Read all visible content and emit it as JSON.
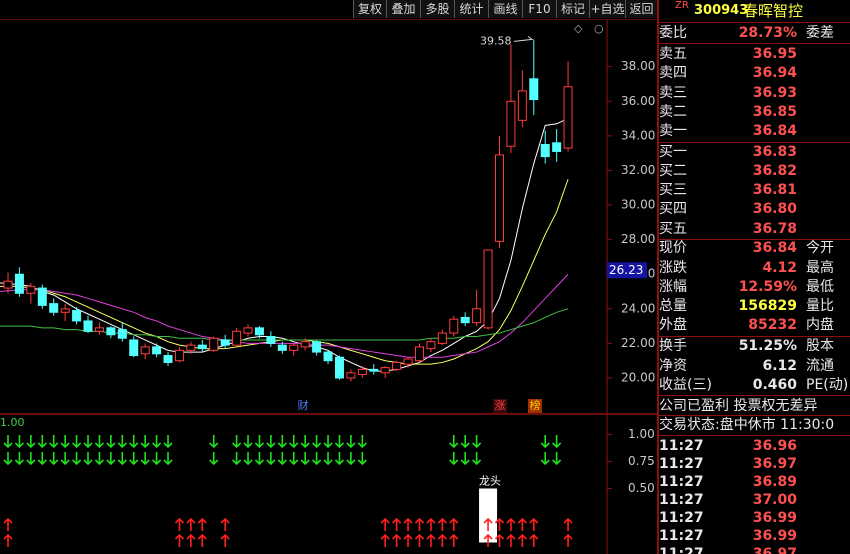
{
  "toolbar": [
    "复权",
    "叠加",
    "多股",
    "统计",
    "画线",
    "F10",
    "标记",
    "+自选",
    "返回"
  ],
  "stock": {
    "tag": "ZR",
    "code": "300943",
    "name": "春晖智控"
  },
  "order_book": {
    "ratio_label": "委比",
    "ratio": "28.73%",
    "diff_label": "委差",
    "asks": [
      {
        "label": "卖五",
        "price": "36.95"
      },
      {
        "label": "卖四",
        "price": "36.94"
      },
      {
        "label": "卖三",
        "price": "36.93"
      },
      {
        "label": "卖二",
        "price": "36.85"
      },
      {
        "label": "卖一",
        "price": "36.84"
      }
    ],
    "bids": [
      {
        "label": "买一",
        "price": "36.83"
      },
      {
        "label": "买二",
        "price": "36.82"
      },
      {
        "label": "买三",
        "price": "36.81"
      },
      {
        "label": "买四",
        "price": "36.80"
      },
      {
        "label": "买五",
        "price": "36.78"
      }
    ]
  },
  "quote": [
    {
      "label": "现价",
      "value": "36.84",
      "label2": "今开",
      "color": "#ff5050"
    },
    {
      "label": "涨跌",
      "value": "4.12",
      "label2": "最高",
      "color": "#ff5050"
    },
    {
      "label": "涨幅",
      "value": "12.59%",
      "label2": "最低",
      "color": "#ff5050"
    },
    {
      "label": "总量",
      "value": "156829",
      "label2": "量比",
      "color": "#ffff40"
    },
    {
      "label": "外盘",
      "value": "85232",
      "label2": "内盘",
      "color": "#ff5050"
    },
    {
      "label": "换手",
      "value": "51.25%",
      "label2": "股本",
      "color": "#e8e8e8"
    },
    {
      "label": "净资",
      "value": "6.12",
      "label2": "流通",
      "color": "#e8e8e8"
    },
    {
      "label": "收益(三)",
      "value": "0.460",
      "label2": "PE(动)",
      "color": "#e8e8e8"
    }
  ],
  "note": "公司已盈利 投票权无差异",
  "status": "交易状态:盘中休市 11:30:0",
  "ticks": [
    {
      "time": "11:27",
      "price": "36.96"
    },
    {
      "time": "11:27",
      "price": "36.97"
    },
    {
      "time": "11:27",
      "price": "36.89"
    },
    {
      "time": "11:27",
      "price": "37.00"
    },
    {
      "time": "11:27",
      "price": "36.99"
    },
    {
      "time": "11:27",
      "price": "36.99"
    },
    {
      "time": "11:27",
      "price": "36.97"
    }
  ],
  "chart": {
    "ylim": [
      18,
      40.7
    ],
    "yticks": [
      {
        "value": 20,
        "label": "20.00"
      },
      {
        "value": 22,
        "label": "22.00"
      },
      {
        "value": 24,
        "label": "24.00"
      },
      {
        "value": 26,
        "label": "26.00"
      },
      {
        "value": 28,
        "label": "28.00"
      },
      {
        "value": 30,
        "label": "30.00"
      },
      {
        "value": 32,
        "label": "32.00"
      },
      {
        "value": 34,
        "label": "34.00"
      },
      {
        "value": 36,
        "label": "36.00"
      },
      {
        "value": 38,
        "label": "38.00"
      }
    ],
    "price_tag": 26.23,
    "candles": [
      [
        25.2,
        26.1,
        24.9,
        25.6
      ],
      [
        26.0,
        26.4,
        24.7,
        24.9
      ],
      [
        24.9,
        25.5,
        24.3,
        25.3
      ],
      [
        25.2,
        25.4,
        24.0,
        24.2
      ],
      [
        24.3,
        24.6,
        23.6,
        23.8
      ],
      [
        23.8,
        24.3,
        23.3,
        24.0
      ],
      [
        23.9,
        24.1,
        23.1,
        23.3
      ],
      [
        23.3,
        23.6,
        22.6,
        22.7
      ],
      [
        22.7,
        23.2,
        22.5,
        22.9
      ],
      [
        22.9,
        23.0,
        22.3,
        22.5
      ],
      [
        22.8,
        23.2,
        22.1,
        22.3
      ],
      [
        22.2,
        22.4,
        21.2,
        21.3
      ],
      [
        21.4,
        22.0,
        21.1,
        21.8
      ],
      [
        21.8,
        22.0,
        21.2,
        21.4
      ],
      [
        21.3,
        21.5,
        20.7,
        20.9
      ],
      [
        21.0,
        21.8,
        20.9,
        21.6
      ],
      [
        21.6,
        22.1,
        21.4,
        21.9
      ],
      [
        21.9,
        22.2,
        21.5,
        21.7
      ],
      [
        21.6,
        22.4,
        21.5,
        22.3
      ],
      [
        22.2,
        22.5,
        21.7,
        21.9
      ],
      [
        21.9,
        22.9,
        21.8,
        22.7
      ],
      [
        22.6,
        23.1,
        22.4,
        22.9
      ],
      [
        22.9,
        23.0,
        22.3,
        22.5
      ],
      [
        22.4,
        22.7,
        21.8,
        22.0
      ],
      [
        21.9,
        22.1,
        21.4,
        21.6
      ],
      [
        21.6,
        22.0,
        21.3,
        21.9
      ],
      [
        21.8,
        22.3,
        21.6,
        22.1
      ],
      [
        22.1,
        22.2,
        21.3,
        21.5
      ],
      [
        21.5,
        21.6,
        20.8,
        21.0
      ],
      [
        21.2,
        21.3,
        19.9,
        20.0
      ],
      [
        20.0,
        20.5,
        19.8,
        20.3
      ],
      [
        20.2,
        20.7,
        20.0,
        20.5
      ],
      [
        20.5,
        20.8,
        20.2,
        20.4
      ],
      [
        20.3,
        20.7,
        20.0,
        20.6
      ],
      [
        20.5,
        21.0,
        20.4,
        20.9
      ],
      [
        20.8,
        21.2,
        20.6,
        21.1
      ],
      [
        21.0,
        22.0,
        20.9,
        21.8
      ],
      [
        21.7,
        22.3,
        21.5,
        22.1
      ],
      [
        22.0,
        22.8,
        21.9,
        22.6
      ],
      [
        22.6,
        23.6,
        22.4,
        23.4
      ],
      [
        23.5,
        23.8,
        23.0,
        23.2
      ],
      [
        23.2,
        25.1,
        23.0,
        24.0
      ],
      [
        22.9,
        27.4,
        22.8,
        27.4
      ],
      [
        27.9,
        34.0,
        27.5,
        32.9
      ],
      [
        33.4,
        39.3,
        33.0,
        36.0
      ],
      [
        34.9,
        37.8,
        34.5,
        36.6
      ],
      [
        37.3,
        39.58,
        35.2,
        36.1
      ],
      [
        33.5,
        34.3,
        32.4,
        32.8
      ],
      [
        33.6,
        34.4,
        32.5,
        33.1
      ],
      [
        33.3,
        38.3,
        33.1,
        36.84
      ]
    ],
    "ma": [
      {
        "color": "#ffffff",
        "values": [
          25.5,
          25.4,
          25.3,
          25.0,
          24.8,
          24.4,
          24.0,
          23.7,
          23.4,
          23.1,
          22.8,
          22.5,
          22.2,
          21.9,
          21.6,
          21.5,
          21.5,
          21.5,
          21.7,
          21.9,
          22.1,
          22.3,
          22.4,
          22.4,
          22.3,
          22.1,
          21.9,
          21.8,
          21.6,
          21.2,
          20.9,
          20.6,
          20.4,
          20.4,
          20.5,
          20.7,
          20.9,
          21.3,
          21.6,
          22.0,
          22.4,
          22.7,
          23.3,
          24.6,
          26.8,
          29.8,
          32.4,
          34.6,
          34.7,
          35.0
        ]
      },
      {
        "color": "#ffff60",
        "values": [
          25.3,
          25.3,
          25.2,
          25.1,
          24.9,
          24.7,
          24.4,
          24.1,
          23.8,
          23.5,
          23.2,
          22.9,
          22.6,
          22.4,
          22.1,
          21.9,
          21.8,
          21.7,
          21.7,
          21.7,
          21.8,
          21.9,
          22.0,
          22.1,
          22.2,
          22.2,
          22.2,
          22.1,
          22.0,
          21.8,
          21.6,
          21.4,
          21.2,
          21.0,
          20.9,
          20.8,
          20.8,
          20.8,
          20.9,
          21.1,
          21.4,
          21.7,
          22.1,
          22.8,
          23.9,
          25.3,
          26.8,
          28.3,
          29.6,
          31.5
        ]
      },
      {
        "color": "#e040e0",
        "values": [
          25.0,
          25.1,
          25.1,
          25.1,
          25.0,
          24.9,
          24.8,
          24.6,
          24.4,
          24.2,
          24.0,
          23.8,
          23.5,
          23.3,
          23.0,
          22.8,
          22.6,
          22.4,
          22.3,
          22.2,
          22.1,
          22.0,
          22.0,
          22.0,
          22.0,
          22.0,
          22.0,
          21.9,
          21.9,
          21.8,
          21.7,
          21.6,
          21.5,
          21.4,
          21.3,
          21.2,
          21.2,
          21.2,
          21.2,
          21.3,
          21.4,
          21.5,
          21.8,
          22.1,
          22.6,
          23.2,
          23.9,
          24.6,
          25.3,
          26.0
        ]
      },
      {
        "color": "#40c040",
        "values": [
          23.0,
          23.0,
          23.0,
          22.9,
          22.9,
          22.8,
          22.8,
          22.7,
          22.7,
          22.6,
          22.6,
          22.5,
          22.5,
          22.4,
          22.4,
          22.3,
          22.3,
          22.3,
          22.2,
          22.2,
          22.2,
          22.2,
          22.2,
          22.2,
          22.2,
          22.2,
          22.2,
          22.2,
          22.2,
          22.2,
          22.2,
          22.2,
          22.2,
          22.2,
          22.2,
          22.2,
          22.2,
          22.3,
          22.3,
          22.3,
          22.4,
          22.4,
          22.5,
          22.6,
          22.8,
          23.0,
          23.2,
          23.5,
          23.8,
          24.0
        ]
      }
    ],
    "events": [
      "财",
      "涨",
      "榜"
    ],
    "lower": {
      "indicator_label": "1.00",
      "ylim": [
        0,
        1.18
      ],
      "yticks": [
        {
          "value": 0.5,
          "label": "0.50"
        },
        {
          "value": 0.75,
          "label": "0.75"
        },
        {
          "value": 1,
          "label": "1.00"
        }
      ],
      "bar": {
        "label": "龙头",
        "index": 42,
        "value": 0.5
      },
      "green_signals": [
        0,
        1,
        2,
        3,
        4,
        5,
        6,
        7,
        8,
        9,
        10,
        11,
        12,
        13,
        14,
        18,
        20,
        21,
        22,
        23,
        24,
        25,
        26,
        27,
        28,
        29,
        30,
        31,
        39,
        40,
        41,
        47,
        48
      ],
      "red_signals": [
        0,
        15,
        16,
        17,
        19,
        33,
        34,
        35,
        36,
        37,
        38,
        39,
        42,
        43,
        44,
        45,
        46,
        49
      ]
    }
  }
}
